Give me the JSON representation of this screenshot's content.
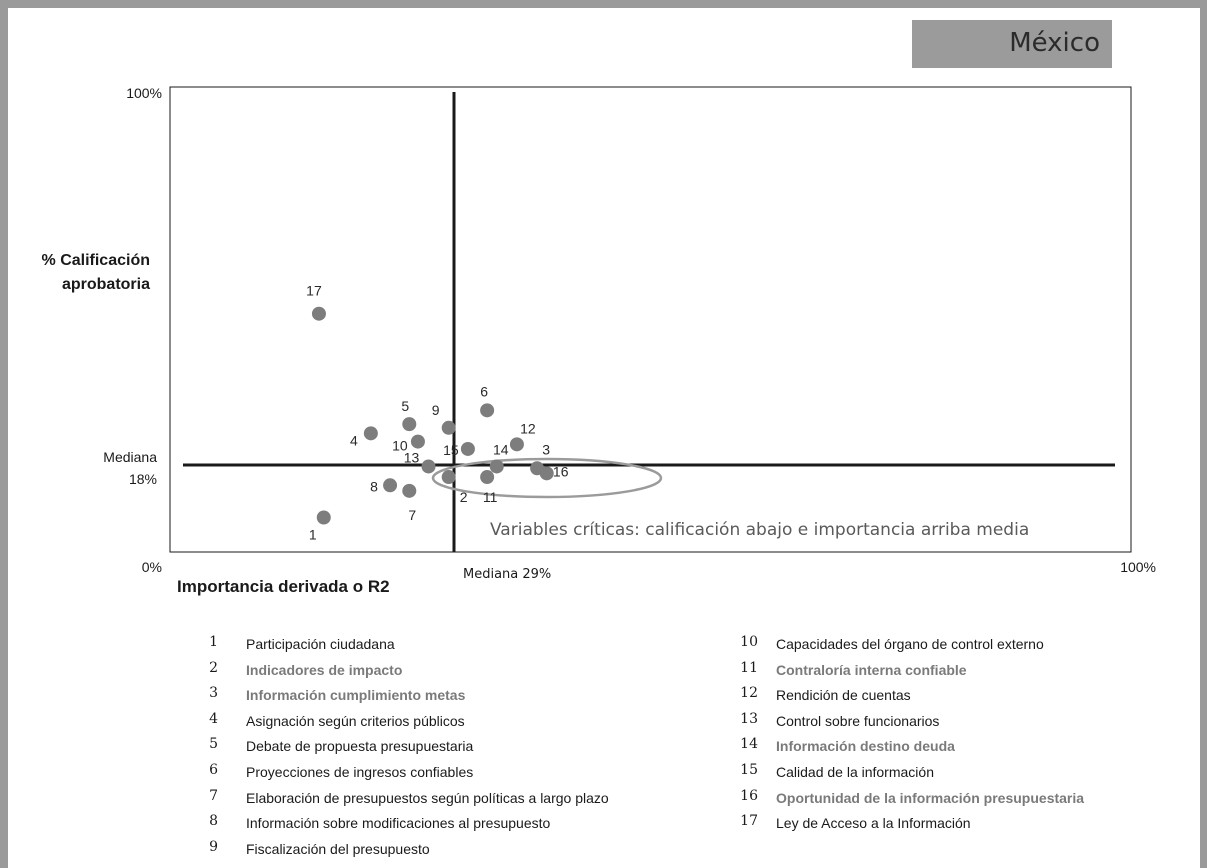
{
  "badge": {
    "country": "México"
  },
  "chart_data": {
    "type": "scatter",
    "title": "",
    "xlabel": "Importancia derivada o R2",
    "ylabel": "% Calificación aprobatoria",
    "xlim": [
      0,
      100
    ],
    "ylim": [
      0,
      100
    ],
    "x_tick_labels": [
      "0%",
      "100%"
    ],
    "y_tick_labels": [
      "0%",
      "100%"
    ],
    "median_x": {
      "value": 29,
      "label": "Mediana 29%"
    },
    "median_y": {
      "value": 18,
      "label_line1": "Mediana",
      "label_line2": "18%"
    },
    "annotation": "Variables críticas: calificación abajo e importancia arriba media",
    "points": [
      {
        "id": "1",
        "x": 16,
        "y": 7.5
      },
      {
        "id": "2",
        "x": 29,
        "y": 16.3
      },
      {
        "id": "3",
        "x": 38.2,
        "y": 18.2
      },
      {
        "id": "4",
        "x": 20.9,
        "y": 25.8
      },
      {
        "id": "5",
        "x": 24.9,
        "y": 27.8
      },
      {
        "id": "6",
        "x": 33,
        "y": 30.8
      },
      {
        "id": "7",
        "x": 24.9,
        "y": 13.3
      },
      {
        "id": "8",
        "x": 22.9,
        "y": 14.5
      },
      {
        "id": "9",
        "x": 29,
        "y": 27
      },
      {
        "id": "10",
        "x": 25.8,
        "y": 24
      },
      {
        "id": "11",
        "x": 33,
        "y": 16.3
      },
      {
        "id": "12",
        "x": 36.1,
        "y": 23.4
      },
      {
        "id": "13",
        "x": 26.9,
        "y": 18.6
      },
      {
        "id": "14",
        "x": 34,
        "y": 18.6
      },
      {
        "id": "15",
        "x": 31,
        "y": 22.4
      },
      {
        "id": "16",
        "x": 39.2,
        "y": 17.1
      },
      {
        "id": "17",
        "x": 15.5,
        "y": 51.8
      }
    ],
    "legend_items": [
      {
        "num": "1",
        "label": "Participación ciudadana",
        "highlight": false
      },
      {
        "num": "2",
        "label": "Indicadores de impacto",
        "highlight": true
      },
      {
        "num": "3",
        "label": "Información cumplimiento metas",
        "highlight": true
      },
      {
        "num": "4",
        "label": "Asignación según criterios públicos",
        "highlight": false
      },
      {
        "num": "5",
        "label": "Debate de propuesta presupuestaria",
        "highlight": false
      },
      {
        "num": "6",
        "label": "Proyecciones de ingresos confiables",
        "highlight": false
      },
      {
        "num": "7",
        "label": "Elaboración de presupuestos según políticas a largo plazo",
        "highlight": false
      },
      {
        "num": "8",
        "label": "Información sobre modificaciones al presupuesto",
        "highlight": false
      },
      {
        "num": "9",
        "label": "Fiscalización del presupuesto",
        "highlight": false
      },
      {
        "num": "10",
        "label": "Capacidades del órgano de control externo",
        "highlight": false
      },
      {
        "num": "11",
        "label": "Contraloría interna confiable",
        "highlight": true
      },
      {
        "num": "12",
        "label": "Rendición de cuentas",
        "highlight": false
      },
      {
        "num": "13",
        "label": "Control sobre funcionarios",
        "highlight": false
      },
      {
        "num": "14",
        "label": "Información destino deuda",
        "highlight": true
      },
      {
        "num": "15",
        "label": "Calidad de la información",
        "highlight": false
      },
      {
        "num": "16",
        "label": "Oportunidad de la información presupuestaria",
        "highlight": true
      },
      {
        "num": "17",
        "label": "Ley de Acceso a la Información",
        "highlight": false
      }
    ]
  },
  "colors": {
    "point": "#7d7d7d",
    "axis": "#1a1a1a",
    "highlight_text": "#7a7a7a",
    "badge_bg": "#9b9b9b",
    "ellipse": "#9b9b9b"
  }
}
